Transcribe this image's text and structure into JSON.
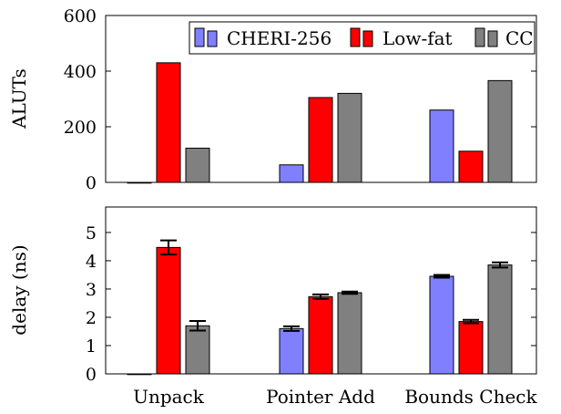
{
  "chart_data": [
    {
      "type": "bar",
      "categories": [
        "Unpack",
        "Pointer Add",
        "Bounds Check"
      ],
      "series": [
        {
          "name": "CHERI-256",
          "values": [
            0,
            63,
            260
          ],
          "color": "#8080ff"
        },
        {
          "name": "Low-fat",
          "values": [
            430,
            305,
            112
          ],
          "color": "#ff0000"
        },
        {
          "name": "CC",
          "values": [
            123,
            320,
            366
          ],
          "color": "#808080"
        }
      ],
      "xlabel": "",
      "ylabel": "ALUTs",
      "ylim": [
        0,
        600
      ],
      "yticks": [
        0,
        200,
        400,
        600
      ],
      "grid": false,
      "legend": "top-right"
    },
    {
      "type": "bar",
      "categories": [
        "Unpack",
        "Pointer Add",
        "Bounds Check"
      ],
      "series": [
        {
          "name": "CHERI-256",
          "values": [
            0,
            1.6,
            3.45
          ],
          "errors": [
            0,
            0.08,
            0.05
          ],
          "color": "#8080ff"
        },
        {
          "name": "Low-fat",
          "values": [
            4.47,
            2.73,
            1.85
          ],
          "errors": [
            0.25,
            0.08,
            0.06
          ],
          "color": "#ff0000"
        },
        {
          "name": "CC",
          "values": [
            1.7,
            2.87,
            3.85
          ],
          "errors": [
            0.17,
            0.04,
            0.09
          ],
          "color": "#808080"
        }
      ],
      "xlabel": "",
      "ylabel": "delay (ns)",
      "ylim": [
        0,
        5.9
      ],
      "yticks": [
        0,
        1,
        2,
        3,
        4,
        5
      ],
      "grid": false,
      "legend": "none"
    }
  ]
}
